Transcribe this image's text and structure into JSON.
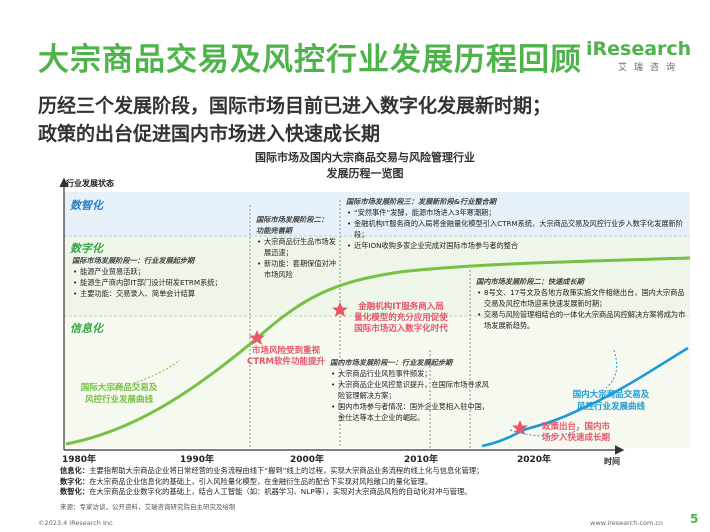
{
  "header": {
    "title": "大宗商品交易及风控行业发展历程回顾",
    "subtitle_lines": [
      "历经三个发展阶段，国际市场目前已进入数字化发展新时期；",
      "政策的出台促进国内市场进入快速成长期"
    ],
    "logo_main": "iResearch",
    "logo_sub": "艾瑞咨询"
  },
  "chart": {
    "title_lines": [
      "国际市场及国内大宗商品交易与风险管理行业",
      "发展历程一览图"
    ],
    "y_axis_label": "行业发展状态",
    "x_axis_label": "时间",
    "years": [
      "1980年",
      "1990年",
      "2000年",
      "2010年",
      "2020年"
    ],
    "bands": [
      {
        "label": "数智化",
        "color": "#2f7fc1"
      },
      {
        "label": "数字化",
        "color": "#3ba748"
      },
      {
        "label": "信息化",
        "color": "#3ba748"
      }
    ],
    "colors": {
      "international": "#76c043",
      "domestic": "#1a9ad6",
      "event": "#e8566a",
      "band_top": "#e6f1fa",
      "band_mid": "#eef6e9",
      "band_low": "#f5f9ef"
    }
  },
  "stages": {
    "intl_1": {
      "head": "国际市场发展阶段一：行业发展起步期",
      "items": [
        "能源产业贸易活跃；",
        "能源生产商内部IT部门设计研发ETRM系统；",
        "主要功能：交易录入、简单会计结算"
      ]
    },
    "intl_2": {
      "head_lines": [
        "国际市场发展阶段二：",
        "功能完善期"
      ],
      "items": [
        "大宗商品衍生品市场发展迅速；",
        "新功能：套期保值对冲市场风险"
      ]
    },
    "intl_3": {
      "head": "国际市场发展阶段三：发展新阶段&行业整合期",
      "items": [
        "“安然事件”发酵，能源市场进入3年寒潮期；",
        "金融机构IT服务商的入局将金融量化模型引入CTRM系统，大宗商品交易及风控行业步入数字化发展新阶段；",
        "近年ION收购多家企业完成对国际市场参与者的整合"
      ]
    },
    "dom_1": {
      "head": "国内市场发展阶段一：行业发展起步期",
      "items": [
        "大宗商品行业风险事件频发；",
        "大宗商品企业风控意识提升，在国际市场寻求风险管理解决方案；",
        "国内市场参与者情况：国外企业竞相入驻中国，金仕达等本土企业的崛起。"
      ]
    },
    "dom_2": {
      "head": "国内市场发展阶段二：快速成长期",
      "items": [
        "8号文、17号文及各地方政策实施文件相继出台，国内大宗商品交易及风控市场迎来快速发展新时期；",
        "交易与风险管理相结合的一体化大宗商品风控解决方案将成为市场发展新趋势。"
      ]
    }
  },
  "events": {
    "e1": [
      "市场风险受到重视",
      "CTRM软件功能提升"
    ],
    "e2": [
      "金融机构IT服务商入局",
      "量化模型的充分应用促使",
      "国际市场迈入数字化时代"
    ],
    "e3": [
      "政策出台，国内市",
      "场步入快速成长期"
    ]
  },
  "curves": {
    "international": [
      "国际大宗商品交易及",
      "风控行业发展曲线"
    ],
    "domestic": [
      "国内大宗商品交易及",
      "风控行业发展曲线"
    ]
  },
  "definitions": [
    {
      "key": "信息化：",
      "text": "主要指帮助大宗商品企业将日常经营的业务流程由线下“搬到”线上的过程，实现大宗商品业务流程的线上化与信息化管理；"
    },
    {
      "key": "数字化：",
      "text": "在大宗商品企业信息化的基础上，引入风险量化模型，在金融衍生品的配合下实现对风险敞口的量化管理。"
    },
    {
      "key": "数智化：",
      "text": "在大宗商品企业数字化的基础上，结合人工智能（如：机器学习、NLP等），实现对大宗商品风险的自动化对冲与管理。"
    }
  ],
  "source": "来源：专家访谈，公开资料，艾瑞咨询研究院自主研究及绘制",
  "footer": {
    "left": "©2023.4 iResearch Inc.",
    "right": "www.iresearch.com.cn",
    "page": "5"
  }
}
